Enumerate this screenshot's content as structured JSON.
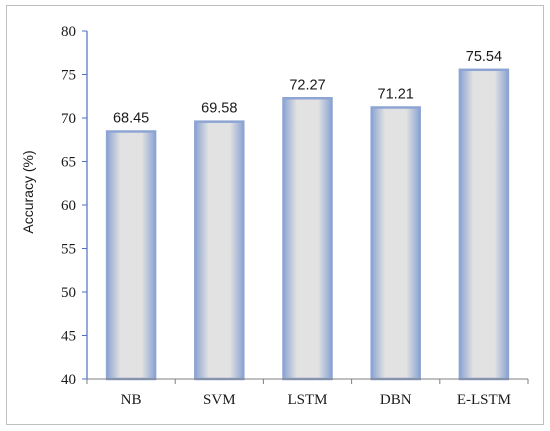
{
  "chart_data": {
    "type": "bar",
    "categories": [
      "NB",
      "SVM",
      "LSTM",
      "DBN",
      "E-LSTM"
    ],
    "values": [
      68.45,
      69.58,
      72.27,
      71.21,
      75.54
    ],
    "value_labels": [
      "68.45",
      "69.58",
      "72.27",
      "71.21",
      "75.54"
    ],
    "title": "",
    "xlabel": "",
    "ylabel": "Accuracy (%)",
    "ylim": [
      40,
      80
    ],
    "yticks": [
      40,
      45,
      50,
      55,
      60,
      65,
      70,
      75,
      80
    ],
    "grid": false,
    "legend": "none",
    "colors": {
      "bar_center": "#e2e2e2",
      "bar_edge": "#8ea5d3",
      "axis": "#4f6fc4"
    }
  }
}
